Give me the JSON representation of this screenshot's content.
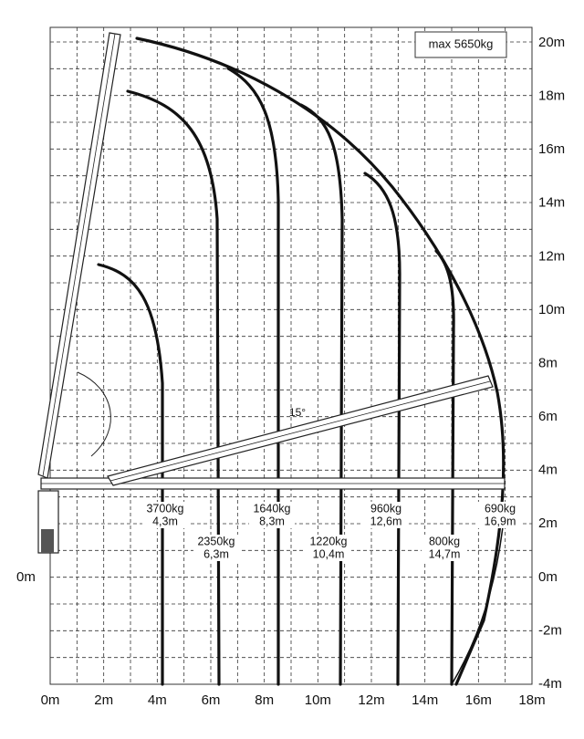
{
  "max_label": "max 5650kg",
  "angle_label": "15°",
  "x_axis": [
    "0m",
    "2m",
    "4m",
    "6m",
    "8m",
    "10m",
    "12m",
    "14m",
    "16m",
    "18m"
  ],
  "y_axis": [
    "20m",
    "18m",
    "16m",
    "14m",
    "12m",
    "10m",
    "8m",
    "6m",
    "4m",
    "2m",
    "0m",
    "-2m",
    "-4m"
  ],
  "left_label": "0m",
  "loads": [
    {
      "weight": "3700kg",
      "radius": "4,3m"
    },
    {
      "weight": "2350kg",
      "radius": "6,3m"
    },
    {
      "weight": "1640kg",
      "radius": "8,3m"
    },
    {
      "weight": "1220kg",
      "radius": "10,4m"
    },
    {
      "weight": "960kg",
      "radius": "12,6m"
    },
    {
      "weight": "800kg",
      "radius": "14,7m"
    },
    {
      "weight": "690kg",
      "radius": "16,9m"
    }
  ]
}
